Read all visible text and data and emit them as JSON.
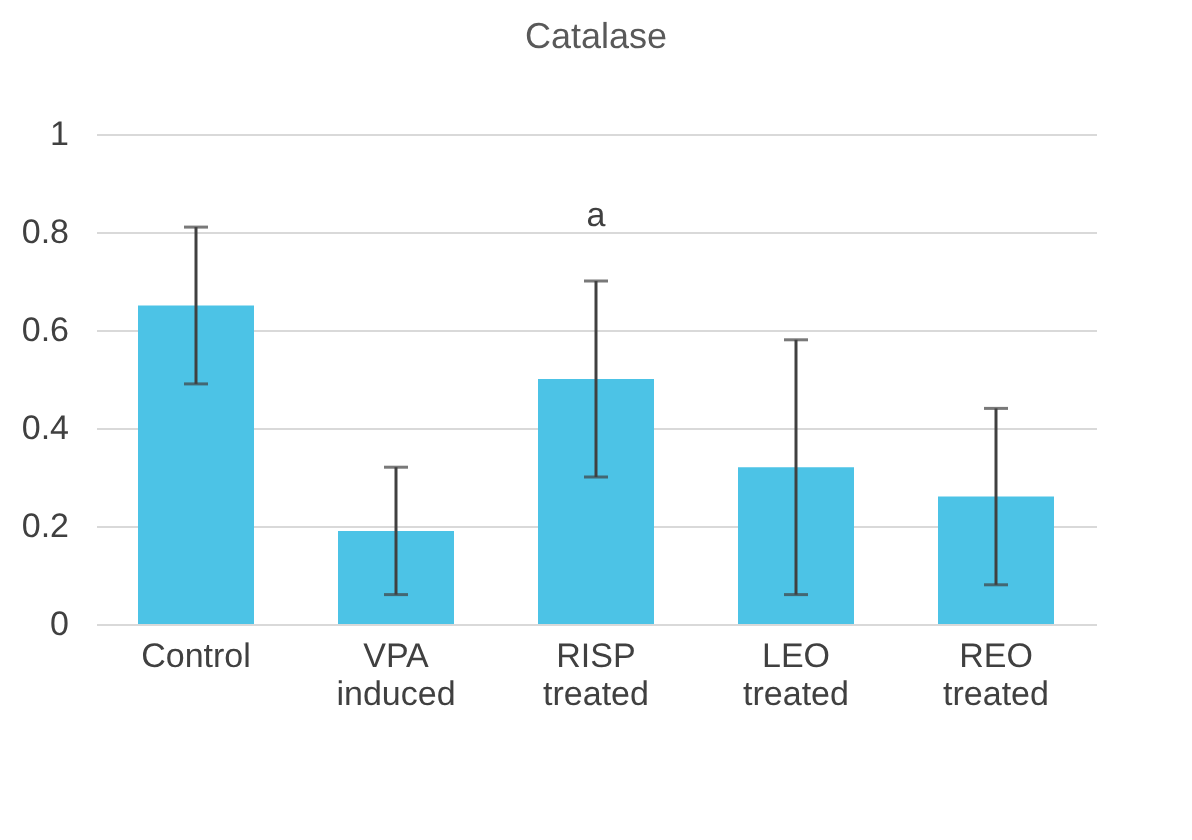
{
  "chart_data": {
    "type": "bar",
    "title": "Catalase",
    "categories": [
      "Control",
      "VPA induced",
      "RISP treated",
      "LEO treated",
      "REO treated"
    ],
    "values": [
      0.65,
      0.19,
      0.5,
      0.32,
      0.26
    ],
    "errors": [
      [
        0.49,
        0.81
      ],
      [
        0.06,
        0.32
      ],
      [
        0.3,
        0.7
      ],
      [
        0.06,
        0.58
      ],
      [
        0.08,
        0.44
      ]
    ],
    "color": "#4cc3e6",
    "ylim": [
      0,
      1
    ],
    "yticks": [
      0,
      0.2,
      0.4,
      0.6,
      0.8,
      1
    ],
    "grid": "y",
    "annotations": [
      "a"
    ]
  }
}
